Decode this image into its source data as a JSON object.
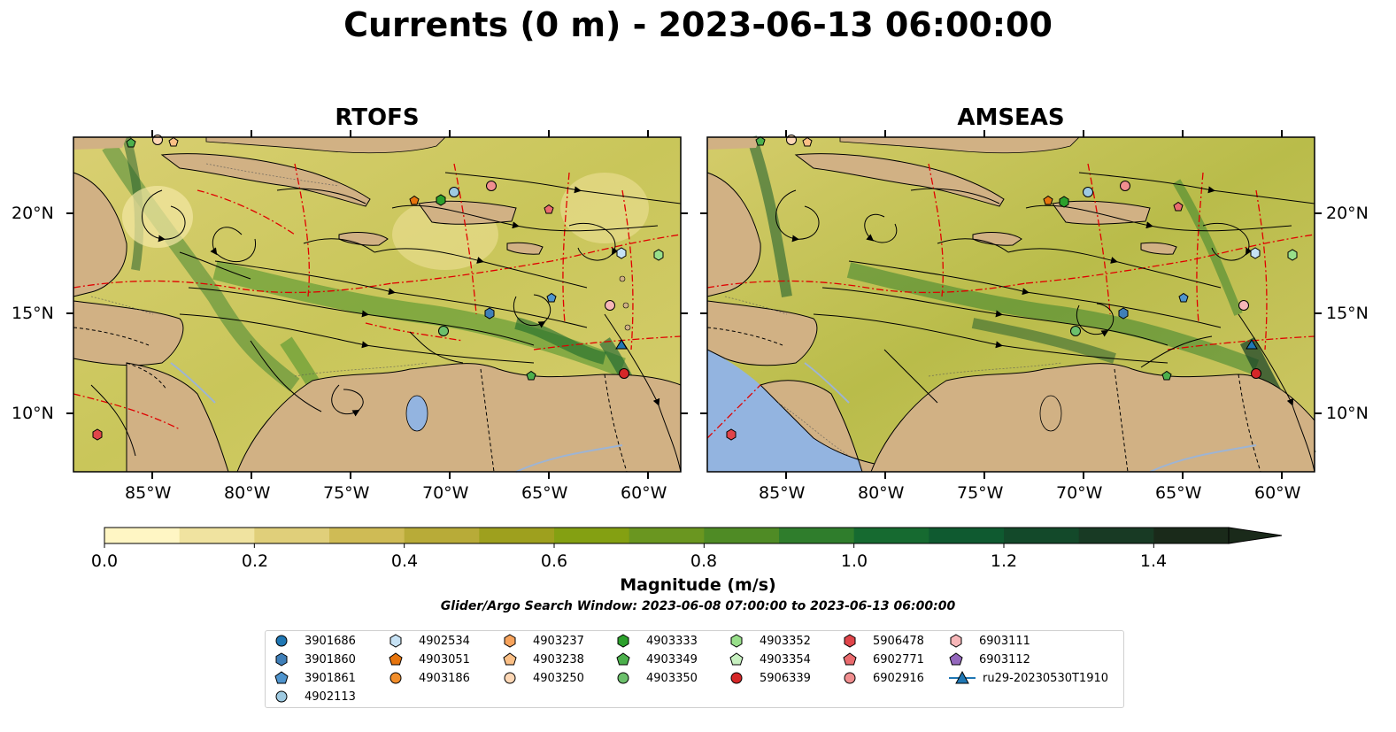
{
  "title": "Currents (0 m) - 2023-06-13 06:00:00",
  "panels": [
    {
      "title": "RTOFS"
    },
    {
      "title": "AMSEAS"
    }
  ],
  "lon_ticks": [
    "85°W",
    "80°W",
    "75°W",
    "70°W",
    "65°W",
    "60°W"
  ],
  "lat_ticks": [
    "20°N",
    "15°N",
    "10°N"
  ],
  "colorbar": {
    "label": "Magnitude (m/s)",
    "ticks": [
      "0.0",
      "0.2",
      "0.4",
      "0.6",
      "0.8",
      "1.0",
      "1.2",
      "1.4"
    ],
    "range": [
      0.0,
      1.5
    ],
    "extend": "max",
    "colors": [
      "#fff6c4",
      "#f0e3a0",
      "#e0cf7a",
      "#cfbb55",
      "#b8ab38",
      "#9ea01e",
      "#84a012",
      "#6a9620",
      "#4f8b25",
      "#2f7d2c",
      "#166a30",
      "#0f5a30",
      "#13492a",
      "#183a24",
      "#1a2a1a"
    ]
  },
  "search_window": "Glider/Argo Search Window: 2023-06-08 07:00:00 to 2023-06-13 06:00:00",
  "legend": [
    {
      "label": "3901686",
      "marker": "circle",
      "color": "#1f77b4"
    },
    {
      "label": "3901860",
      "marker": "hexagon",
      "color": "#3f7fb8"
    },
    {
      "label": "3901861",
      "marker": "pentagon",
      "color": "#4f94cd"
    },
    {
      "label": "4902113",
      "marker": "circle",
      "color": "#9ecae1"
    },
    {
      "label": "4902534",
      "marker": "hexagon",
      "color": "#c6e2f5"
    },
    {
      "label": "4903051",
      "marker": "pentagon",
      "color": "#e6740d"
    },
    {
      "label": "4903186",
      "marker": "circle",
      "color": "#f28e2b"
    },
    {
      "label": "4903237",
      "marker": "hexagon",
      "color": "#f7a35c"
    },
    {
      "label": "4903238",
      "marker": "pentagon",
      "color": "#fbbf85"
    },
    {
      "label": "4903250",
      "marker": "circle",
      "color": "#fdd7b5"
    },
    {
      "label": "4903333",
      "marker": "hexagon",
      "color": "#2ca02c"
    },
    {
      "label": "4903349",
      "marker": "pentagon",
      "color": "#4cb04c"
    },
    {
      "label": "4903350",
      "marker": "circle",
      "color": "#6cc06c"
    },
    {
      "label": "4903352",
      "marker": "hexagon",
      "color": "#98df8a"
    },
    {
      "label": "4903354",
      "marker": "pentagon",
      "color": "#c7f0c0"
    },
    {
      "label": "5906339",
      "marker": "circle",
      "color": "#d62728"
    },
    {
      "label": "5906478",
      "marker": "hexagon",
      "color": "#e0454a"
    },
    {
      "label": "6902771",
      "marker": "pentagon",
      "color": "#ea6b6e"
    },
    {
      "label": "6902916",
      "marker": "circle",
      "color": "#f08e8f"
    },
    {
      "label": "6903111",
      "marker": "hexagon",
      "color": "#f7b6b8"
    },
    {
      "label": "6903112",
      "marker": "pentagon",
      "color": "#9467bd"
    },
    {
      "label": "ru29-20230530T1910",
      "marker": "triangle-line",
      "color": "#1f77b4"
    }
  ]
}
